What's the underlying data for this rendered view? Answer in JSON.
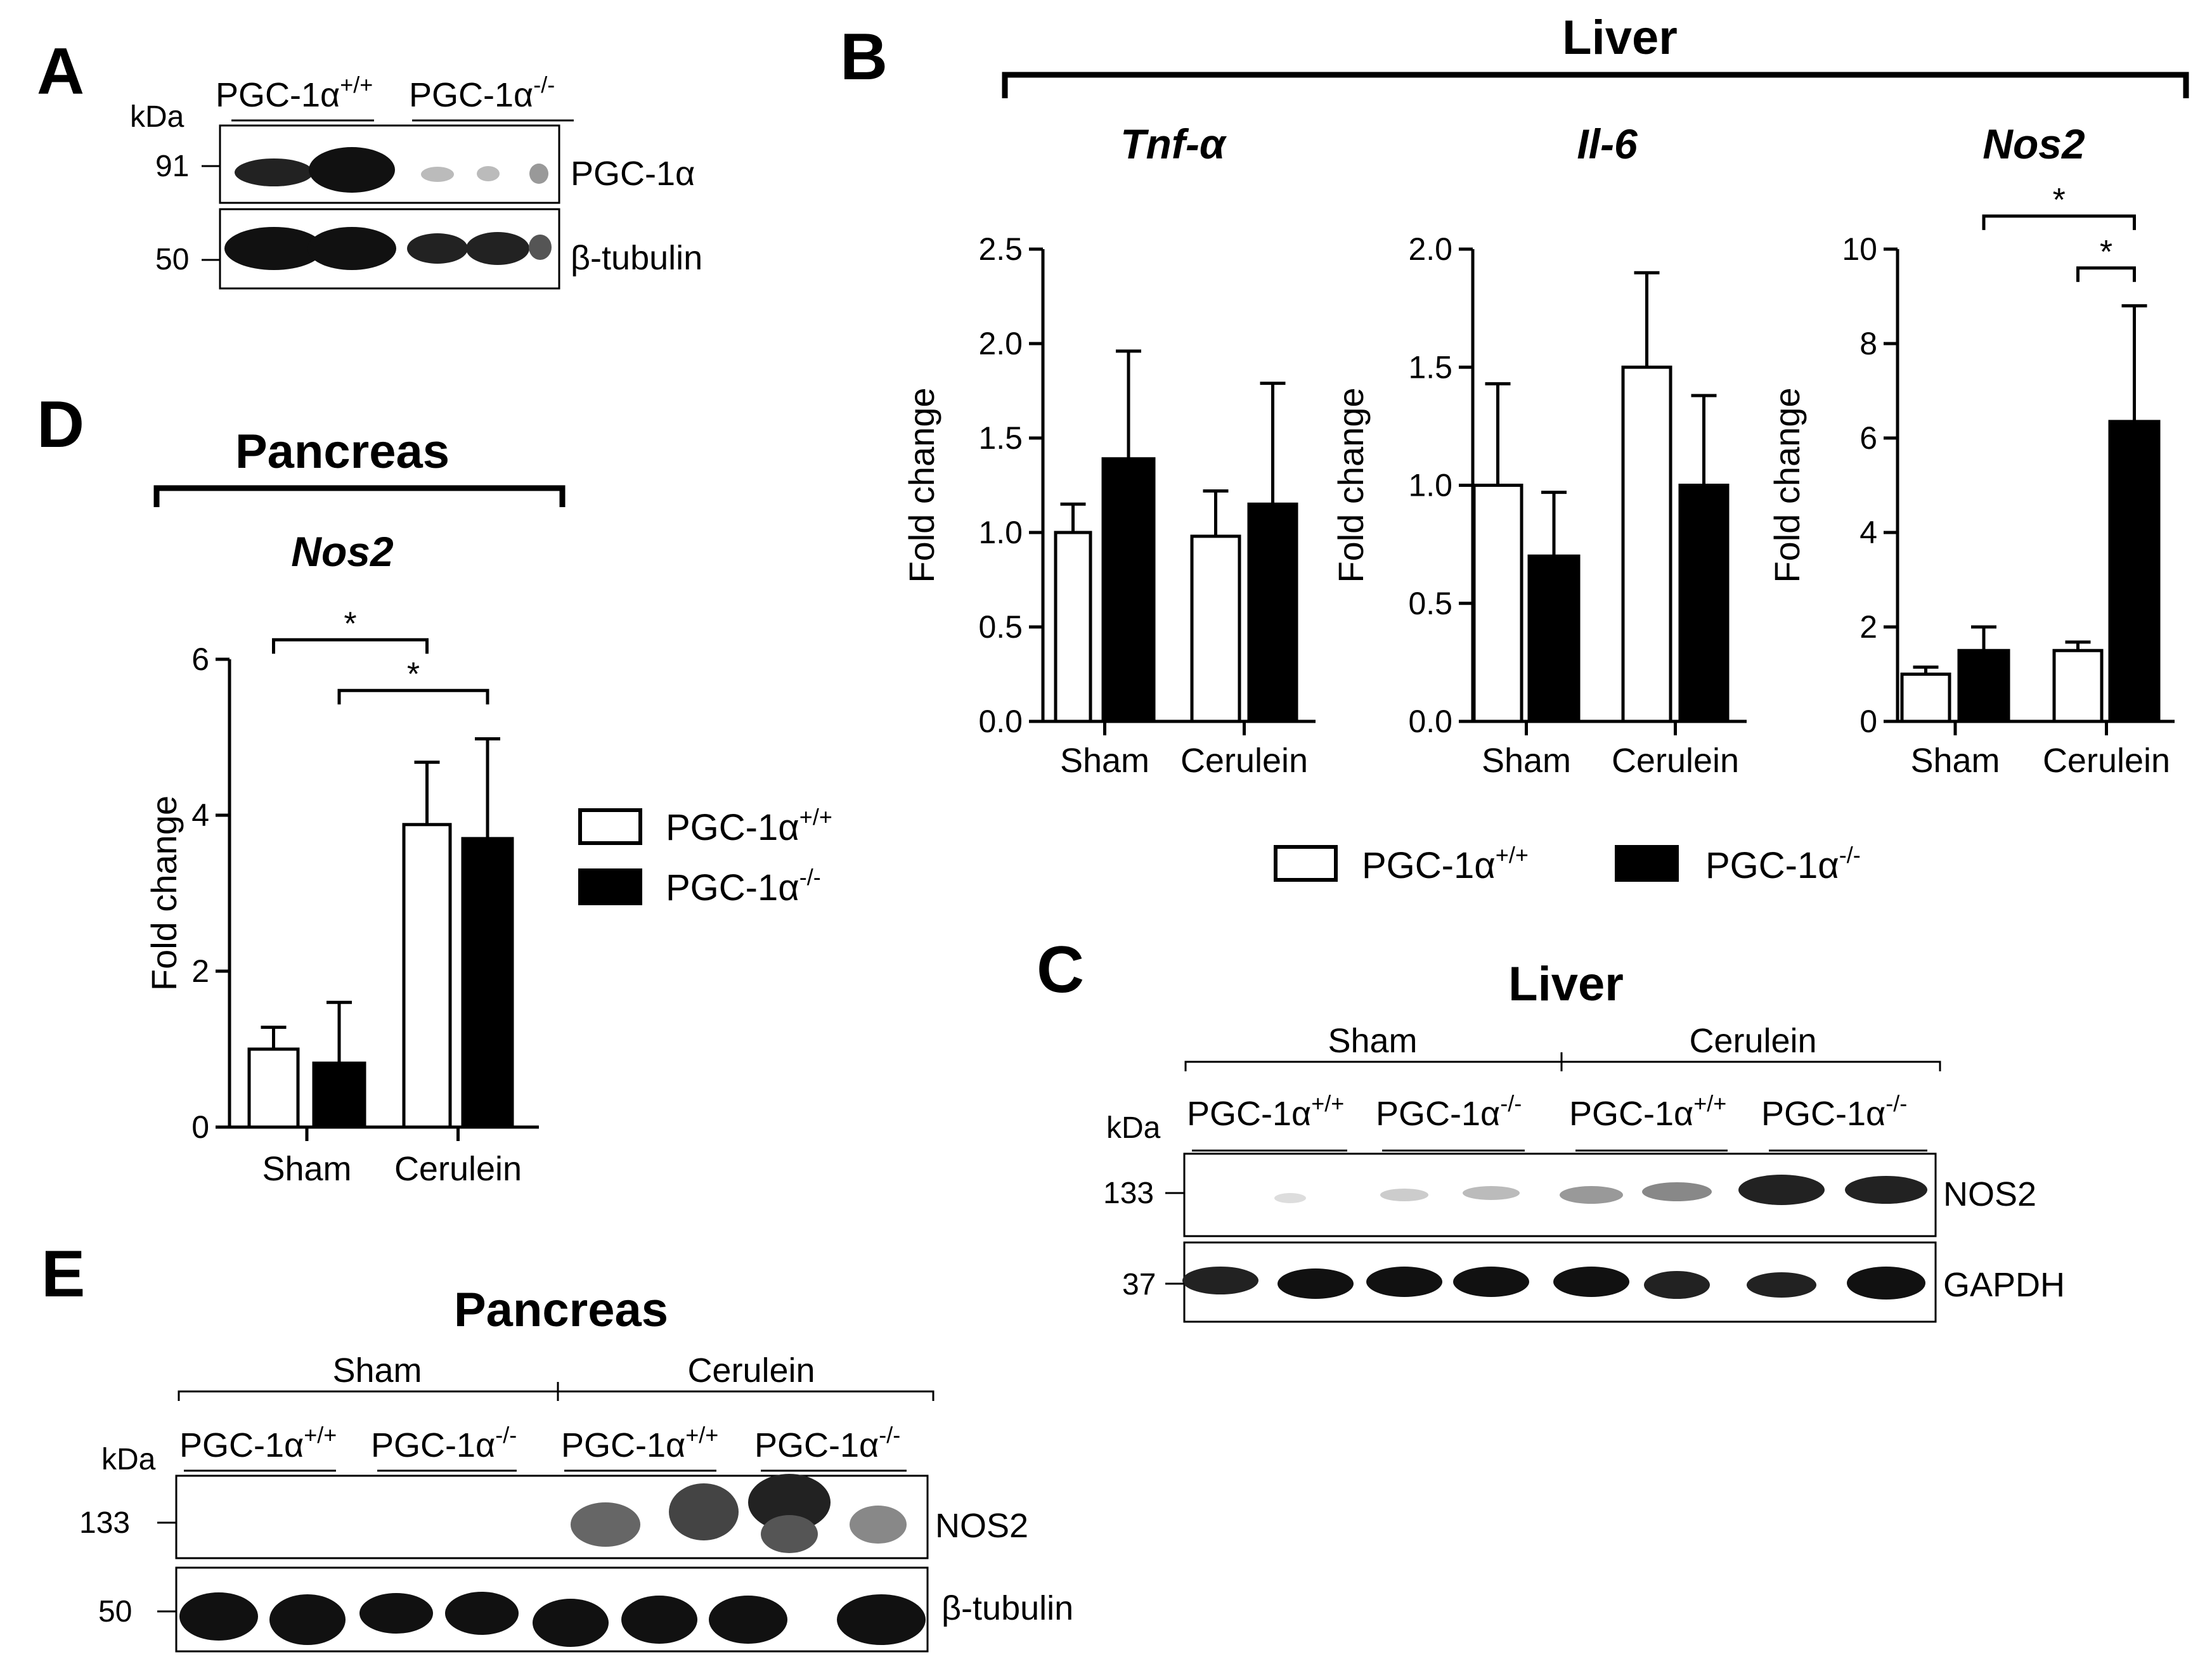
{
  "figure": {
    "panels": {
      "A": {
        "letter": "A"
      },
      "B": {
        "letter": "B",
        "title": "Liver"
      },
      "C": {
        "letter": "C",
        "title": "Liver"
      },
      "D": {
        "letter": "D",
        "title": "Pancreas"
      },
      "E": {
        "letter": "E",
        "title": "Pancreas"
      }
    },
    "genotype_wt": "PGC-1α",
    "genotype_wt_sup": "+/+",
    "genotype_ko": "PGC-1α",
    "genotype_ko_sup": "-/-",
    "kda_label": "kDa",
    "groups": {
      "sham": "Sham",
      "cerulein": "Cerulein"
    },
    "blots": {
      "A": {
        "bands": [
          {
            "label": "PGC-1α",
            "kda": "91"
          },
          {
            "label": "β-tubulin",
            "kda": "50"
          }
        ]
      },
      "C": {
        "bands": [
          {
            "label": "NOS2",
            "kda": "133"
          },
          {
            "label": "GAPDH",
            "kda": "37"
          }
        ]
      },
      "E": {
        "bands": [
          {
            "label": "NOS2",
            "kda": "133"
          },
          {
            "label": "β-tubulin",
            "kda": "50"
          }
        ]
      }
    },
    "colors": {
      "wt_fill": "#ffffff",
      "ko_fill": "#000000",
      "stroke": "#000000"
    }
  },
  "chart_data": [
    {
      "id": "B-tnf",
      "type": "bar",
      "title": "Tnf-α",
      "ylabel": "Fold change",
      "categories": [
        "Sham",
        "Cerulein"
      ],
      "ylim": [
        0,
        2.5
      ],
      "yticks": [
        "0.0",
        "0.5",
        "1.0",
        "1.5",
        "2.0",
        "2.5"
      ],
      "series": [
        {
          "name": "PGC-1α+/+",
          "values": [
            1.0,
            0.98
          ],
          "errors": [
            0.15,
            0.24
          ]
        },
        {
          "name": "PGC-1α-/-",
          "values": [
            1.39,
            1.15
          ],
          "errors": [
            0.57,
            0.64
          ]
        }
      ],
      "significance": []
    },
    {
      "id": "B-il6",
      "type": "bar",
      "title": "Il-6",
      "ylabel": "Fold change",
      "categories": [
        "Sham",
        "Cerulein"
      ],
      "ylim": [
        0,
        2.0
      ],
      "yticks": [
        "0.0",
        "0.5",
        "1.0",
        "1.5",
        "2.0"
      ],
      "series": [
        {
          "name": "PGC-1α+/+",
          "values": [
            1.0,
            1.5
          ],
          "errors": [
            0.43,
            0.4
          ]
        },
        {
          "name": "PGC-1α-/-",
          "values": [
            0.7,
            1.0
          ],
          "errors": [
            0.27,
            0.38
          ]
        }
      ],
      "significance": []
    },
    {
      "id": "B-nos2",
      "type": "bar",
      "title": "Nos2",
      "ylabel": "Fold change",
      "categories": [
        "Sham",
        "Cerulein"
      ],
      "ylim": [
        0,
        10
      ],
      "yticks": [
        "0",
        "2",
        "4",
        "6",
        "8",
        "10"
      ],
      "series": [
        {
          "name": "PGC-1α+/+",
          "values": [
            1.0,
            1.5
          ],
          "errors": [
            0.15,
            0.18
          ]
        },
        {
          "name": "PGC-1α-/-",
          "values": [
            1.5,
            6.35
          ],
          "errors": [
            0.5,
            2.45
          ]
        }
      ],
      "significance": [
        {
          "from": [
            0,
            1
          ],
          "to": [
            1,
            1
          ],
          "label": "*",
          "level": 10.7
        },
        {
          "from": [
            1,
            0
          ],
          "to": [
            1,
            1
          ],
          "label": "*",
          "level": 9.6
        }
      ]
    },
    {
      "id": "D-nos2",
      "type": "bar",
      "title": "Nos2",
      "ylabel": "Fold change",
      "categories": [
        "Sham",
        "Cerulein"
      ],
      "ylim": [
        0,
        6
      ],
      "yticks": [
        "0",
        "2",
        "4",
        "6"
      ],
      "series": [
        {
          "name": "PGC-1α+/+",
          "values": [
            1.0,
            3.88
          ],
          "errors": [
            0.28,
            0.8
          ]
        },
        {
          "name": "PGC-1α-/-",
          "values": [
            0.82,
            3.7
          ],
          "errors": [
            0.78,
            1.28
          ]
        }
      ],
      "significance": [
        {
          "from": [
            0,
            0
          ],
          "to": [
            1,
            0
          ],
          "label": "*",
          "level": 6.25
        },
        {
          "from": [
            0,
            1
          ],
          "to": [
            1,
            1
          ],
          "label": "*",
          "level": 5.6
        }
      ]
    }
  ]
}
